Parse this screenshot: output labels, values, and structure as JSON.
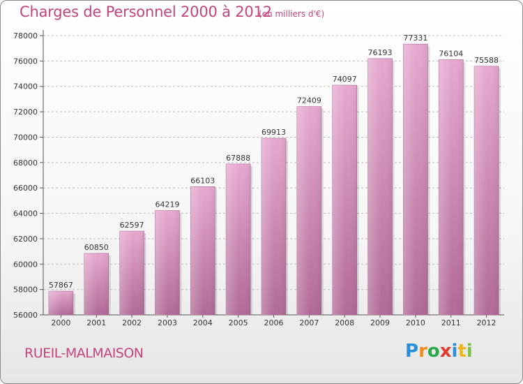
{
  "title": "Charges de Personnel 2000 à 2012",
  "subtitle": "(en milliers d'€)",
  "city": "RUEIL-MALMAISON",
  "logo": {
    "letters": [
      "P",
      "r",
      "o",
      "x",
      "i",
      "t",
      "i"
    ],
    "colors": [
      "#2a8fd8",
      "#f08c1e",
      "#2aa84a",
      "#e23b2e",
      "#2a8fd8",
      "#f0b51e",
      "#7cc242"
    ]
  },
  "colors": {
    "title": "#c2447c",
    "bar_top": "#e6a8cf",
    "bar_bottom": "#b06a96",
    "grid": "#bdbdbd"
  },
  "chart_data": {
    "type": "bar",
    "title": "Charges de Personnel 2000 à 2012",
    "categories": [
      "2000",
      "2001",
      "2002",
      "2003",
      "2004",
      "2005",
      "2006",
      "2007",
      "2008",
      "2009",
      "2010",
      "2011",
      "2012"
    ],
    "values": [
      57867,
      60850,
      62597,
      64219,
      66103,
      67888,
      69913,
      72409,
      74097,
      76193,
      77331,
      76104,
      75588
    ],
    "data_labels": [
      "57867",
      "60850",
      "62597",
      "64219",
      "66103",
      "67888",
      "69913",
      "72409",
      "74097",
      "76193",
      "77331",
      "76104",
      "75588"
    ],
    "ylim": [
      56000,
      78000
    ],
    "yticks": [
      56000,
      58000,
      60000,
      62000,
      64000,
      66000,
      68000,
      70000,
      72000,
      74000,
      76000,
      78000
    ],
    "ytick_labels": [
      "56000",
      "58000",
      "60000",
      "62000",
      "64000",
      "66000",
      "68000",
      "70000",
      "72000",
      "74000",
      "76000",
      "78000"
    ],
    "xlabel": "",
    "ylabel": "",
    "grid": true,
    "legend": "none"
  }
}
